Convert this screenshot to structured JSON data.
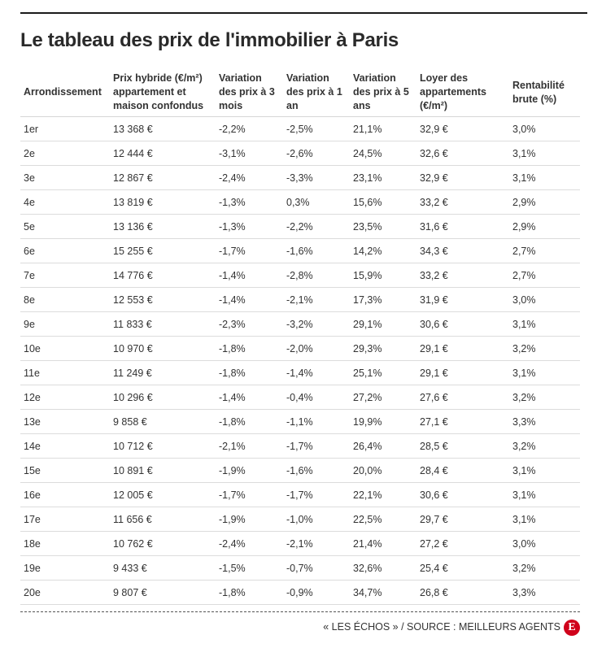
{
  "title": "Le tableau des prix de l'immobilier à Paris",
  "credit": "« LES ÉCHOS » / SOURCE : MEILLEURS AGENTS",
  "logo_letter": "E",
  "colors": {
    "rule": "#1a1a1a",
    "text": "#333333",
    "logo": "#d0021b"
  },
  "chart_data": {
    "type": "table",
    "title": "Le tableau des prix de l'immobilier à Paris",
    "columns": [
      "Arrondissement",
      "Prix hybride (€/m²) appartement et maison confondus",
      "Variation des prix à 3 mois",
      "Variation des prix à 1 an",
      "Variation des prix à 5 ans",
      "Loyer des appartements (€/m²)",
      "Rentabilité brute (%)"
    ],
    "rows": [
      [
        "1er",
        "13 368 €",
        "-2,2%",
        "-2,5%",
        "21,1%",
        "32,9 €",
        "3,0%"
      ],
      [
        "2e",
        "12 444 €",
        "-3,1%",
        "-2,6%",
        "24,5%",
        "32,6 €",
        "3,1%"
      ],
      [
        "3e",
        "12 867 €",
        "-2,4%",
        "-3,3%",
        "23,1%",
        "32,9 €",
        "3,1%"
      ],
      [
        "4e",
        "13 819 €",
        "-1,3%",
        "0,3%",
        "15,6%",
        "33,2 €",
        "2,9%"
      ],
      [
        "5e",
        "13 136 €",
        "-1,3%",
        "-2,2%",
        "23,5%",
        "31,6 €",
        "2,9%"
      ],
      [
        "6e",
        "15 255 €",
        "-1,7%",
        "-1,6%",
        "14,2%",
        "34,3 €",
        "2,7%"
      ],
      [
        "7e",
        "14 776 €",
        "-1,4%",
        "-2,8%",
        "15,9%",
        "33,2 €",
        "2,7%"
      ],
      [
        "8e",
        "12 553 €",
        "-1,4%",
        "-2,1%",
        "17,3%",
        "31,9 €",
        "3,0%"
      ],
      [
        "9e",
        "11 833 €",
        "-2,3%",
        "-3,2%",
        "29,1%",
        "30,6 €",
        "3,1%"
      ],
      [
        "10e",
        "10 970 €",
        "-1,8%",
        "-2,0%",
        "29,3%",
        "29,1 €",
        "3,2%"
      ],
      [
        "11e",
        "11 249 €",
        "-1,8%",
        "-1,4%",
        "25,1%",
        "29,1 €",
        "3,1%"
      ],
      [
        "12e",
        "10 296 €",
        "-1,4%",
        "-0,4%",
        "27,2%",
        "27,6 €",
        "3,2%"
      ],
      [
        "13e",
        "9 858 €",
        "-1,8%",
        "-1,1%",
        "19,9%",
        "27,1 €",
        "3,3%"
      ],
      [
        "14e",
        "10 712 €",
        "-2,1%",
        "-1,7%",
        "26,4%",
        "28,5 €",
        "3,2%"
      ],
      [
        "15e",
        "10 891 €",
        "-1,9%",
        "-1,6%",
        "20,0%",
        "28,4 €",
        "3,1%"
      ],
      [
        "16e",
        "12 005 €",
        "-1,7%",
        "-1,7%",
        "22,1%",
        "30,6 €",
        "3,1%"
      ],
      [
        "17e",
        "11 656 €",
        "-1,9%",
        "-1,0%",
        "22,5%",
        "29,7 €",
        "3,1%"
      ],
      [
        "18e",
        "10 762 €",
        "-2,4%",
        "-2,1%",
        "21,4%",
        "27,2 €",
        "3,0%"
      ],
      [
        "19e",
        "9 433 €",
        "-1,5%",
        "-0,7%",
        "32,6%",
        "25,4 €",
        "3,2%"
      ],
      [
        "20e",
        "9 807 €",
        "-1,8%",
        "-0,9%",
        "34,7%",
        "26,8 €",
        "3,3%"
      ]
    ]
  }
}
